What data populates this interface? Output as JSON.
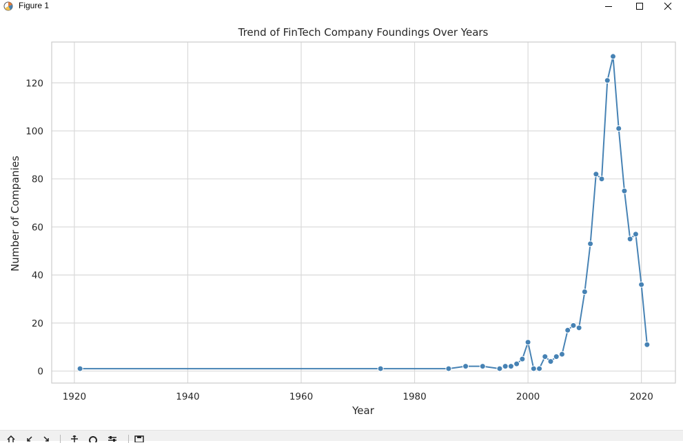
{
  "window": {
    "title": "Figure 1",
    "icon": "matplotlib-figure-icon",
    "controls": [
      "minimize-icon",
      "maximize-icon",
      "close-icon"
    ]
  },
  "toolbar": {
    "tools": [
      "home-icon",
      "back-icon",
      "forward-icon",
      "pan-icon",
      "zoom-icon",
      "configure-subplots-icon",
      "save-icon"
    ]
  },
  "chart_data": {
    "type": "line",
    "title": "Trend of FinTech Company Foundings Over Years",
    "xlabel": "Year",
    "ylabel": "Number of Companies",
    "xlim": [
      1916,
      2026
    ],
    "ylim": [
      -5,
      137
    ],
    "xticks": [
      1920,
      1940,
      1960,
      1980,
      2000,
      2020
    ],
    "yticks": [
      0,
      20,
      40,
      60,
      80,
      100,
      120
    ],
    "grid": true,
    "legend": "none",
    "line_color": "#4682b4",
    "x": [
      1921,
      1974,
      1986,
      1989,
      1992,
      1995,
      1996,
      1997,
      1998,
      1999,
      2000,
      2001,
      2002,
      2003,
      2004,
      2005,
      2006,
      2007,
      2008,
      2009,
      2010,
      2011,
      2012,
      2013,
      2014,
      2015,
      2016,
      2017,
      2018,
      2019,
      2020,
      2021
    ],
    "y": [
      1,
      1,
      1,
      2,
      2,
      1,
      2,
      2,
      3,
      5,
      12,
      1,
      1,
      6,
      4,
      6,
      7,
      17,
      19,
      18,
      33,
      53,
      82,
      80,
      121,
      131,
      101,
      75,
      55,
      57,
      36,
      11
    ]
  }
}
